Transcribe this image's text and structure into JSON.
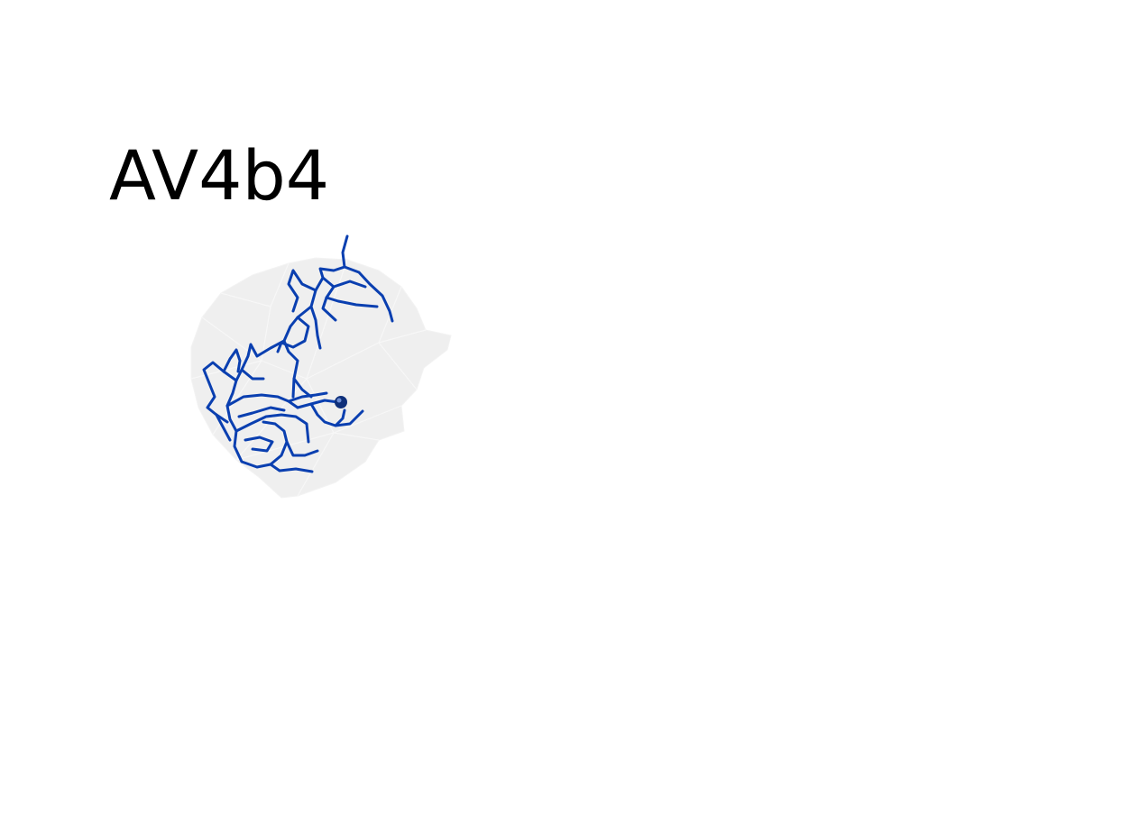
{
  "title": "AV4b4",
  "colors": {
    "neuron": "#0a3fb0",
    "soma": "#0e2f7a",
    "mesh": "#e9e9e9",
    "mesh_edge": "#f6f6f6"
  }
}
